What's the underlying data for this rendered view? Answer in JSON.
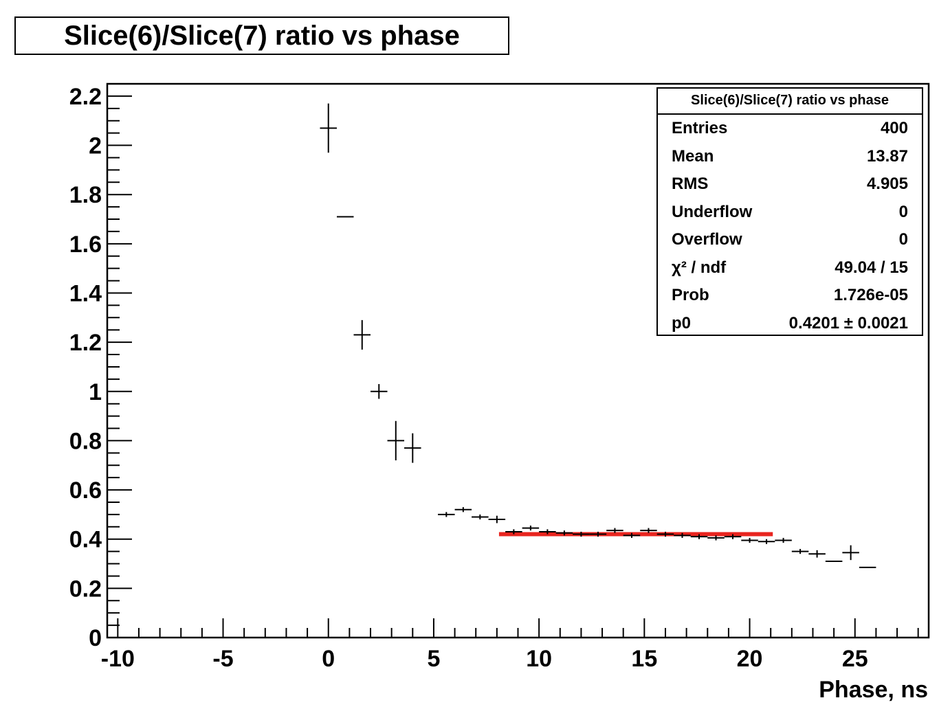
{
  "title": "Slice(6)/Slice(7) ratio vs phase",
  "xlabel": "Phase, ns",
  "stats": {
    "title": "Slice(6)/Slice(7) ratio vs phase",
    "rows": [
      {
        "label": "Entries",
        "value": "400"
      },
      {
        "label": "Mean",
        "value": "13.87"
      },
      {
        "label": "RMS",
        "value": "4.905"
      },
      {
        "label": "Underflow",
        "value": "0"
      },
      {
        "label": "Overflow",
        "value": "0"
      },
      {
        "label": "χ² / ndf",
        "value": "49.04 / 15"
      },
      {
        "label": "Prob",
        "value": "1.726e-05"
      },
      {
        "label": "p0",
        "value": "0.4201 ± 0.0021"
      }
    ]
  },
  "chart_data": {
    "type": "scatter",
    "xlim": [
      -10.5,
      28.5
    ],
    "ylim": [
      0,
      2.25
    ],
    "x_ticks": [
      -10,
      -5,
      0,
      5,
      10,
      15,
      20,
      25
    ],
    "y_ticks": [
      0,
      0.2,
      0.4,
      0.6,
      0.8,
      1,
      1.2,
      1.4,
      1.6,
      1.8,
      2,
      2.2
    ],
    "x_tick_labels": [
      "-10",
      "-5",
      "0",
      "5",
      "10",
      "15",
      "20",
      "25"
    ],
    "y_tick_labels": [
      "0",
      "0.2",
      "0.4",
      "0.6",
      "0.8",
      "1",
      "1.2",
      "1.4",
      "1.6",
      "1.8",
      "2",
      "2.2"
    ],
    "points": [
      {
        "x": 0.0,
        "y": 2.07,
        "xerr": 0.4,
        "yerr": 0.1
      },
      {
        "x": 0.8,
        "y": 1.71,
        "xerr": 0.4,
        "yerr": 0.0
      },
      {
        "x": 1.6,
        "y": 1.23,
        "xerr": 0.4,
        "yerr": 0.06
      },
      {
        "x": 2.4,
        "y": 1.0,
        "xerr": 0.4,
        "yerr": 0.03
      },
      {
        "x": 3.2,
        "y": 0.8,
        "xerr": 0.4,
        "yerr": 0.08
      },
      {
        "x": 4.0,
        "y": 0.77,
        "xerr": 0.4,
        "yerr": 0.06
      },
      {
        "x": 5.6,
        "y": 0.5,
        "xerr": 0.4,
        "yerr": 0.01
      },
      {
        "x": 6.4,
        "y": 0.52,
        "xerr": 0.4,
        "yerr": 0.01
      },
      {
        "x": 7.2,
        "y": 0.49,
        "xerr": 0.4,
        "yerr": 0.01
      },
      {
        "x": 8.0,
        "y": 0.48,
        "xerr": 0.4,
        "yerr": 0.015
      },
      {
        "x": 8.8,
        "y": 0.43,
        "xerr": 0.4,
        "yerr": 0.01
      },
      {
        "x": 9.6,
        "y": 0.445,
        "xerr": 0.4,
        "yerr": 0.01
      },
      {
        "x": 10.4,
        "y": 0.43,
        "xerr": 0.4,
        "yerr": 0.01
      },
      {
        "x": 11.2,
        "y": 0.425,
        "xerr": 0.4,
        "yerr": 0.01
      },
      {
        "x": 12.0,
        "y": 0.42,
        "xerr": 0.4,
        "yerr": 0.01
      },
      {
        "x": 12.8,
        "y": 0.42,
        "xerr": 0.4,
        "yerr": 0.01
      },
      {
        "x": 13.6,
        "y": 0.435,
        "xerr": 0.4,
        "yerr": 0.01
      },
      {
        "x": 14.4,
        "y": 0.415,
        "xerr": 0.4,
        "yerr": 0.01
      },
      {
        "x": 15.2,
        "y": 0.435,
        "xerr": 0.4,
        "yerr": 0.01
      },
      {
        "x": 16.0,
        "y": 0.42,
        "xerr": 0.4,
        "yerr": 0.01
      },
      {
        "x": 16.8,
        "y": 0.415,
        "xerr": 0.4,
        "yerr": 0.01
      },
      {
        "x": 17.6,
        "y": 0.41,
        "xerr": 0.4,
        "yerr": 0.01
      },
      {
        "x": 18.4,
        "y": 0.405,
        "xerr": 0.4,
        "yerr": 0.01
      },
      {
        "x": 19.2,
        "y": 0.41,
        "xerr": 0.4,
        "yerr": 0.01
      },
      {
        "x": 20.0,
        "y": 0.395,
        "xerr": 0.4,
        "yerr": 0.01
      },
      {
        "x": 20.8,
        "y": 0.39,
        "xerr": 0.4,
        "yerr": 0.01
      },
      {
        "x": 21.6,
        "y": 0.395,
        "xerr": 0.4,
        "yerr": 0.01
      },
      {
        "x": 22.4,
        "y": 0.35,
        "xerr": 0.4,
        "yerr": 0.01
      },
      {
        "x": 23.2,
        "y": 0.34,
        "xerr": 0.4,
        "yerr": 0.015
      },
      {
        "x": 24.0,
        "y": 0.31,
        "xerr": 0.4,
        "yerr": 0.0
      },
      {
        "x": 24.8,
        "y": 0.345,
        "xerr": 0.4,
        "yerr": 0.03
      },
      {
        "x": 25.6,
        "y": 0.285,
        "xerr": 0.4,
        "yerr": 0.0
      }
    ],
    "fit": {
      "type": "constant",
      "x_range": [
        8.1,
        21.1
      ],
      "value": 0.4201,
      "color": "#e8251f"
    },
    "grid": false,
    "legend": "top-right"
  }
}
